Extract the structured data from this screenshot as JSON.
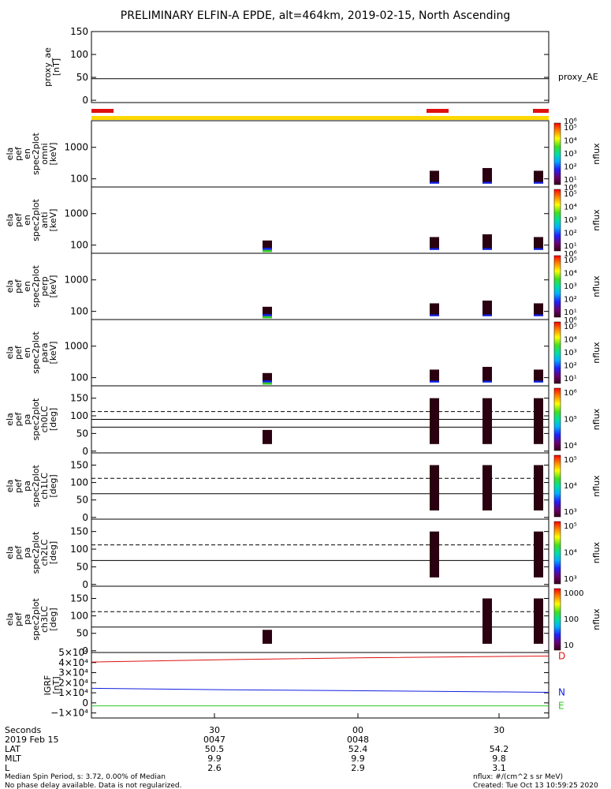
{
  "title": "PRELIMINARY ELFIN-A EPDE, alt=464km, 2019-02-15, North Ascending",
  "colors": {
    "red": "#e01010",
    "yellow": "#ffd800",
    "green": "#2ecc20",
    "blue": "#1020e0",
    "dark": "#2a0010"
  },
  "chart_data": [
    {
      "type": "line",
      "panel": "proxy_ae",
      "ylabel": [
        "proxy_ae",
        "[nT]"
      ],
      "ylim": [
        -5,
        150
      ],
      "yticks": [
        0,
        50,
        100,
        150
      ],
      "tick_labels": [
        "0",
        "50",
        "100",
        "150"
      ],
      "series": [
        {
          "name": "proxy_AE",
          "x": [
            0,
            1
          ],
          "y": [
            47,
            47
          ]
        }
      ]
    },
    {
      "type": "heatmap",
      "panel": "omni",
      "ylabel": [
        "ela",
        "pef",
        "en",
        "spec2plot",
        "omni",
        "[keV]"
      ],
      "ylog": true,
      "ylim": [
        55,
        7000
      ],
      "yticks": [
        100,
        1000
      ],
      "tick_labels": [
        "100",
        "1000"
      ],
      "colorbar": {
        "label": "nflux",
        "ticks": [
          "10⁵",
          "10⁴",
          "10³",
          "10²",
          "10¹"
        ],
        "top_label": "10⁶"
      }
    },
    {
      "type": "heatmap",
      "panel": "anti",
      "ylabel": [
        "ela",
        "pef",
        "en",
        "spec2plot",
        "anti",
        "[keV]"
      ],
      "ylog": true,
      "ylim": [
        55,
        7000
      ],
      "yticks": [
        100,
        1000
      ],
      "tick_labels": [
        "100",
        "1000"
      ],
      "colorbar": {
        "label": "nflux",
        "ticks": [
          "10⁵",
          "10⁴",
          "10³",
          "10²",
          "10¹"
        ],
        "top_label": "10⁶"
      }
    },
    {
      "type": "heatmap",
      "panel": "perp",
      "ylabel": [
        "ela",
        "pef",
        "en",
        "spec2plot",
        "perp",
        "[keV]"
      ],
      "ylog": true,
      "ylim": [
        55,
        7000
      ],
      "yticks": [
        100,
        1000
      ],
      "tick_labels": [
        "100",
        "1000"
      ],
      "colorbar": {
        "label": "nflux",
        "ticks": [
          "10⁵",
          "10⁴",
          "10³",
          "10²",
          "10¹"
        ],
        "top_label": "10⁶"
      }
    },
    {
      "type": "heatmap",
      "panel": "para",
      "ylabel": [
        "ela",
        "pef",
        "en",
        "spec2plot",
        "para",
        "[keV]"
      ],
      "ylog": true,
      "ylim": [
        55,
        7000
      ],
      "yticks": [
        100,
        1000
      ],
      "tick_labels": [
        "100",
        "1000"
      ],
      "colorbar": {
        "label": "nflux",
        "ticks": [
          "10⁵",
          "10⁴",
          "10³",
          "10²",
          "10¹"
        ],
        "top_label": "10⁶"
      }
    },
    {
      "type": "heatmap",
      "panel": "ch0LC",
      "ylabel": [
        "ela",
        "pef",
        "pa",
        "spec2plot",
        "ch0LC",
        "[deg]"
      ],
      "ylim": [
        -5,
        185
      ],
      "yticks": [
        0,
        50,
        100,
        150
      ],
      "tick_labels": [
        "0",
        "50",
        "100",
        "150"
      ],
      "colorbar": {
        "label": "nflux",
        "ticks": [
          "10⁶",
          "10⁵",
          "10⁴"
        ]
      }
    },
    {
      "type": "heatmap",
      "panel": "ch1LC",
      "ylabel": [
        "ela",
        "pef",
        "pa",
        "spec2plot",
        "ch1LC",
        "[deg]"
      ],
      "ylim": [
        -5,
        185
      ],
      "yticks": [
        0,
        50,
        100,
        150
      ],
      "tick_labels": [
        "0",
        "50",
        "100",
        "150"
      ],
      "colorbar": {
        "label": "nflux",
        "ticks": [
          "10⁵",
          "10⁴",
          "10³"
        ]
      }
    },
    {
      "type": "heatmap",
      "panel": "ch2LC",
      "ylabel": [
        "ela",
        "pef",
        "pa",
        "spec2plot",
        "ch2LC",
        "[deg]"
      ],
      "ylim": [
        -5,
        185
      ],
      "yticks": [
        0,
        50,
        100,
        150
      ],
      "tick_labels": [
        "0",
        "50",
        "100",
        "150"
      ],
      "colorbar": {
        "label": "nflux",
        "ticks": [
          "10⁵",
          "10⁴",
          "10³"
        ]
      }
    },
    {
      "type": "heatmap",
      "panel": "ch3LC",
      "ylabel": [
        "ela",
        "pef",
        "pa",
        "spec2plot",
        "ch3LC",
        "[deg]"
      ],
      "ylim": [
        -5,
        185
      ],
      "yticks": [
        0,
        50,
        100,
        150
      ],
      "tick_labels": [
        "0",
        "50",
        "100",
        "150"
      ],
      "colorbar": {
        "label": "nflux",
        "ticks": [
          "1000",
          "100",
          "10"
        ]
      }
    },
    {
      "type": "line",
      "panel": "igrf",
      "ylabel": [
        "IGRF",
        "[nT]"
      ],
      "ylim": [
        -15000,
        50000
      ],
      "yticks": [
        -10000,
        0,
        10000,
        20000,
        30000,
        40000,
        50000
      ],
      "tick_labels": [
        "−1×10⁴",
        "0",
        "1×10⁴",
        "2×10⁴",
        "3×10⁴",
        "4×10⁴",
        "5×10⁴"
      ],
      "series": [
        {
          "name": "D",
          "color": "#e01010",
          "x": [
            0,
            0.3,
            0.6,
            1
          ],
          "y": [
            40500,
            43000,
            44800,
            46500
          ]
        },
        {
          "name": "N",
          "color": "#1020e0",
          "x": [
            0,
            0.3,
            0.6,
            1
          ],
          "y": [
            14500,
            13000,
            12000,
            10500
          ]
        },
        {
          "name": "E",
          "color": "#2ecc20",
          "x": [
            0,
            0.5,
            1
          ],
          "y": [
            -3000,
            -3000,
            -3000
          ]
        }
      ]
    }
  ],
  "xaxis": {
    "major_ticks": [
      "30",
      "00",
      "30"
    ],
    "rows": [
      {
        "label": "Seconds",
        "values": [
          "30",
          "00",
          "30"
        ]
      },
      {
        "label": "2019 Feb 15",
        "values": [
          "0047",
          "0048",
          ""
        ]
      },
      {
        "label": "LAT",
        "values": [
          "50.5",
          "52.4",
          "54.2"
        ]
      },
      {
        "label": "MLT",
        "values": [
          "9.9",
          "9.9",
          "9.8"
        ]
      },
      {
        "label": "L",
        "values": [
          "2.6",
          "2.9",
          "3.1"
        ]
      }
    ]
  },
  "footer": {
    "left_line1": "Median Spin Period, s: 3.72, 0.00% of Median",
    "left_line2": "No phase delay available. Data is not regularized.",
    "right_line1": "nflux: #/(cm^2 s sr MeV)",
    "right_line2": "Created: Tue Oct 13 10:59:25 2020"
  },
  "proxy_label": "proxy_AE"
}
